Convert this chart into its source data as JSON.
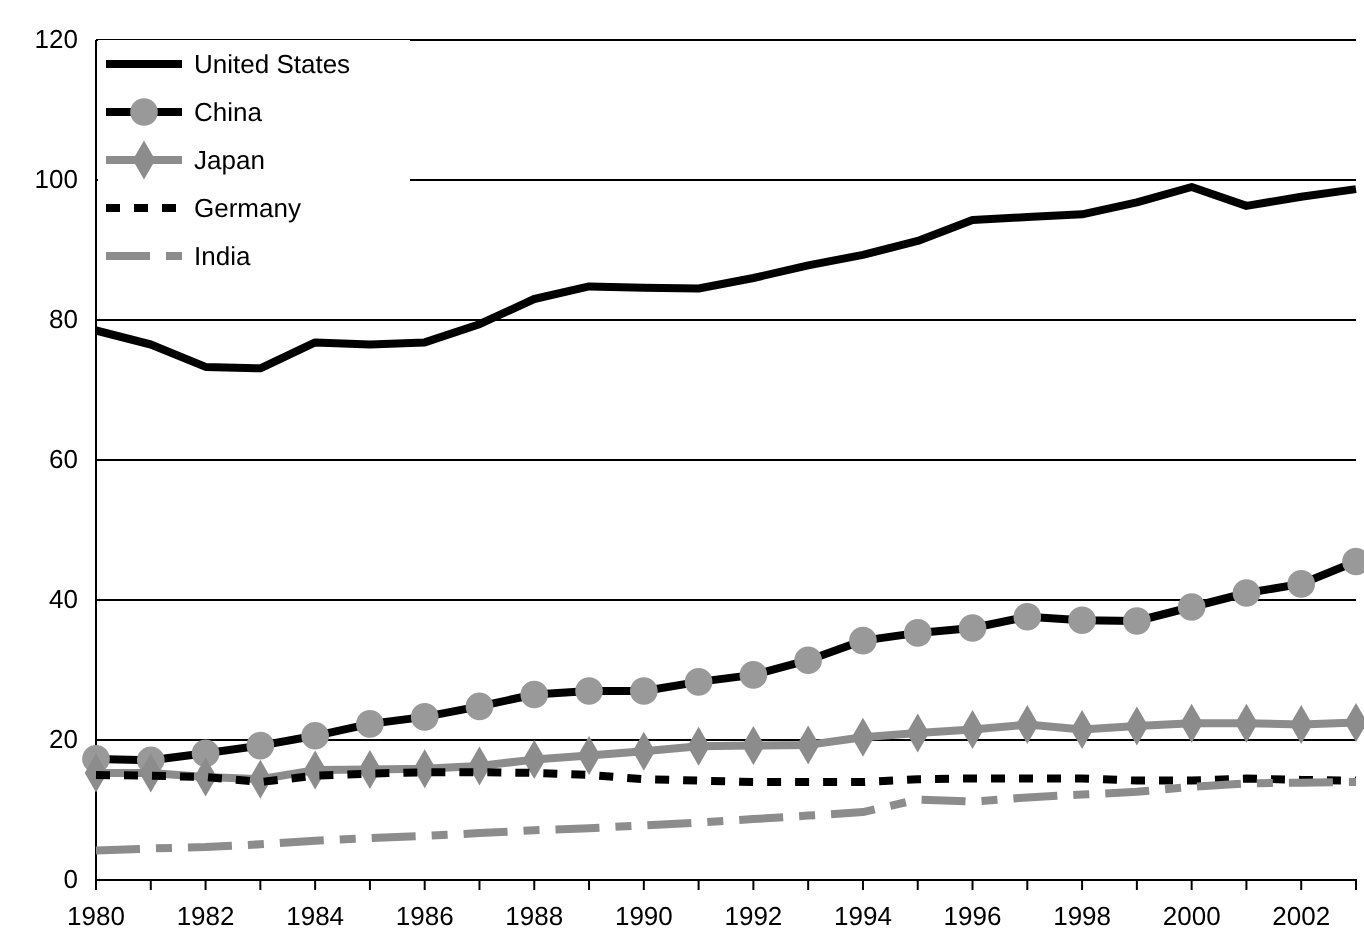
{
  "chart_data": {
    "type": "line",
    "x": [
      1980,
      1981,
      1982,
      1983,
      1984,
      1985,
      1986,
      1987,
      1988,
      1989,
      1990,
      1991,
      1992,
      1993,
      1994,
      1995,
      1996,
      1997,
      1998,
      1999,
      2000,
      2001,
      2002,
      2003
    ],
    "series": [
      {
        "name": "United States",
        "color": "#000000",
        "line_style": "solid",
        "marker": "none",
        "values": [
          78.5,
          76.5,
          73.3,
          73.1,
          76.8,
          76.5,
          76.8,
          79.4,
          83,
          84.8,
          84.6,
          84.5,
          86,
          87.8,
          89.3,
          91.3,
          94.3,
          94.7,
          95.1,
          96.8,
          99,
          96.3,
          97.6,
          98.7
        ]
      },
      {
        "name": "China",
        "color": "#000000",
        "colors": [
          "#999999",
          "#999999",
          "#999999",
          "#999999",
          "#999999",
          "#999999",
          "#999999",
          "#999999",
          "#999999",
          "#999999",
          "#999999",
          "#999999",
          "#999999",
          "#999999",
          "#999999",
          "#999999",
          "#999999",
          "#999999",
          "#999999",
          "#999999",
          "#999999",
          "#999999",
          "#999999",
          "#999999"
        ],
        "line_style": "solid",
        "marker": "circle",
        "values": [
          17.3,
          17.1,
          18.1,
          19.2,
          20.6,
          22.3,
          23.3,
          24.8,
          26.5,
          27,
          27,
          28.3,
          29.3,
          31.4,
          34.2,
          35.3,
          36,
          37.6,
          37.1,
          37,
          39,
          41,
          42.3,
          45.5
        ]
      },
      {
        "name": "Japan",
        "color": "#8c8c8c",
        "line_style": "solid",
        "marker": "diamond",
        "values": [
          15.3,
          15.3,
          14.7,
          14.4,
          15.7,
          15.8,
          15.9,
          16.3,
          17.2,
          17.8,
          18.4,
          19.1,
          19.2,
          19.3,
          20.4,
          21,
          21.5,
          22.2,
          21.5,
          22,
          22.4,
          22.4,
          22.2,
          22.5
        ]
      },
      {
        "name": "Germany",
        "color": "#000000",
        "line_style": "dotted",
        "marker": "none",
        "values": [
          15,
          14.9,
          14.7,
          14,
          14.9,
          15.2,
          15.4,
          15.4,
          15.3,
          15,
          14.4,
          14.2,
          14,
          14,
          14,
          14.4,
          14.5,
          14.5,
          14.5,
          14.2,
          14.2,
          14.5,
          14.3,
          14.2
        ]
      },
      {
        "name": "India",
        "color": "#8c8c8c",
        "line_style": "dashed",
        "marker": "none",
        "values": [
          4.2,
          4.5,
          4.7,
          5.1,
          5.6,
          6,
          6.3,
          6.7,
          7.1,
          7.4,
          7.8,
          8.2,
          8.7,
          9.2,
          9.7,
          11.5,
          11.2,
          11.8,
          12.2,
          12.6,
          13.3,
          13.8,
          13.9,
          14
        ]
      }
    ],
    "xlim": [
      1980,
      2003
    ],
    "xticks": [
      1980,
      {
        "value": 1981,
        "label": null
      },
      1982,
      {
        "value": 1983,
        "label": null
      },
      1984,
      {
        "value": 1985,
        "label": null
      },
      1986,
      {
        "value": 1987,
        "label": null
      },
      1988,
      {
        "value": 1989,
        "label": null
      },
      1990,
      {
        "value": 1991,
        "label": null
      },
      1992,
      {
        "value": 1993,
        "label": null
      },
      1994,
      {
        "value": 1995,
        "label": null
      },
      1996,
      {
        "value": 1997,
        "label": null
      },
      1998,
      {
        "value": 1999,
        "label": null
      },
      2000,
      {
        "value": 2001,
        "label": null
      },
      2002,
      {
        "value": 2003,
        "label": null
      }
    ],
    "ylim": [
      0,
      120
    ],
    "yticks": [
      0,
      20,
      40,
      60,
      80,
      100,
      120
    ],
    "grid": "y",
    "legend": "top left"
  }
}
